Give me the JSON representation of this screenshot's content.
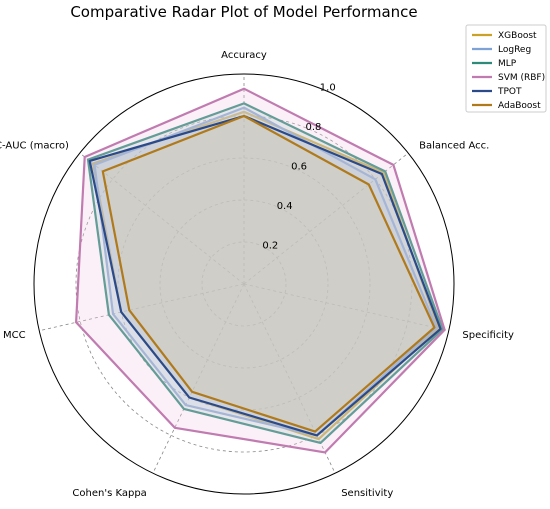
{
  "chart_data": {
    "type": "radar",
    "title": "Comparative Radar Plot of Model Performance",
    "axes": [
      "Accuracy",
      "Balanced Acc.",
      "Specificity",
      "Sensitivity",
      "Cohen's Kappa",
      "MCC",
      "ROC-AUC (macro)"
    ],
    "rlim": [
      0,
      1.0
    ],
    "rticks": [
      {
        "value": 0.2,
        "label": "0.2"
      },
      {
        "value": 0.4,
        "label": "0.4"
      },
      {
        "value": 0.6,
        "label": "0.6"
      },
      {
        "value": 0.8,
        "label": "0.8"
      },
      {
        "value": 1.0,
        "label": "1.0"
      }
    ],
    "grid": true,
    "legend_position": "top-right",
    "series": [
      {
        "name": "XGBoost",
        "color": "#c9a227",
        "fill": "#e8d98a",
        "values": [
          0.82,
          0.85,
          0.95,
          0.82,
          0.6,
          0.6,
          0.92
        ]
      },
      {
        "name": "LogReg",
        "color": "#7ea1d6",
        "fill": "#b9cde9",
        "values": [
          0.84,
          0.8,
          0.94,
          0.8,
          0.64,
          0.64,
          0.91
        ]
      },
      {
        "name": "MLP",
        "color": "#2e8b7a",
        "fill": "#9fcfc4",
        "values": [
          0.86,
          0.86,
          0.97,
          0.84,
          0.66,
          0.66,
          0.95
        ]
      },
      {
        "name": "SVM (RBF)",
        "color": "#c07bb0",
        "fill": "#f0c8e4",
        "values": [
          0.93,
          0.91,
          0.98,
          0.89,
          0.76,
          0.82,
          0.97
        ]
      },
      {
        "name": "TPOT",
        "color": "#2a4a8a",
        "fill": "#a8b6d6",
        "values": [
          0.8,
          0.84,
          0.96,
          0.8,
          0.6,
          0.6,
          0.94
        ]
      },
      {
        "name": "AdaBoost",
        "color": "#b07a1a",
        "fill": "#d8c49a",
        "values": [
          0.8,
          0.76,
          0.93,
          0.78,
          0.57,
          0.56,
          0.86
        ]
      }
    ]
  }
}
